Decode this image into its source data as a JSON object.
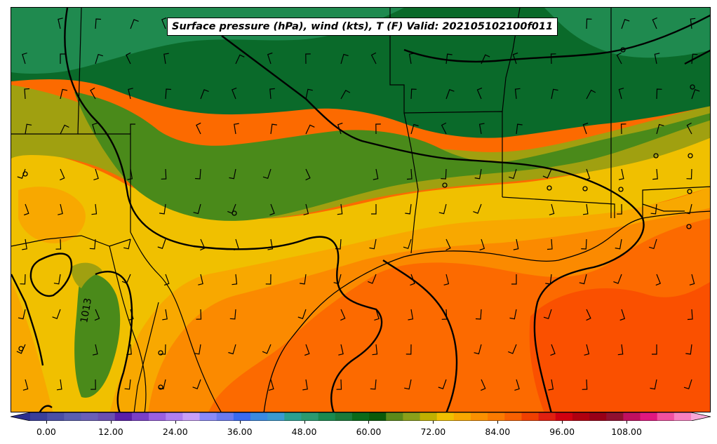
{
  "title": "Surface pressure (hPa), wind (kts), T (F) Valid: 202105102100f011",
  "isobar_label": "1013",
  "colorbar": {
    "min": -6,
    "max": 120,
    "step": 3,
    "extend": "both",
    "ticks": [
      "0.00",
      "12.00",
      "24.00",
      "36.00",
      "48.00",
      "60.00",
      "72.00",
      "84.00",
      "96.00",
      "108.00"
    ],
    "tick_values": [
      0,
      12,
      24,
      36,
      48,
      60,
      72,
      84,
      96,
      108
    ],
    "colors": [
      "#2b2f8f",
      "#3a3f9a",
      "#4a4fa5",
      "#5a5fb0",
      "#6a5fb8",
      "#6a4fb0",
      "#5a1fa8",
      "#7a3fc8",
      "#9a5fe0",
      "#b07ff0",
      "#c89ff8",
      "#8a8af8",
      "#6a7af0",
      "#3a6af0",
      "#3a8ae0",
      "#3a9ad0",
      "#2aa090",
      "#2a9a70",
      "#1a8a50",
      "#1a7a3a",
      "#0a6a1a",
      "#0a5a0a",
      "#5a8a1a",
      "#8aa01a",
      "#c0b000",
      "#f0c000",
      "#f8a800",
      "#fb9000",
      "#fb7a00",
      "#f86000",
      "#f04000",
      "#e02010",
      "#d00010",
      "#b00010",
      "#980018",
      "#901030",
      "#c01060",
      "#e01880",
      "#f050a0",
      "#f880c0",
      "#f8a8d8"
    ]
  },
  "map_colors": {
    "t50": "#1f8a4f",
    "t55": "#0a6a2a",
    "t60": "#4a8a1a",
    "t63": "#a0a010",
    "t66": "#f0c000",
    "t69": "#f8a800",
    "t72": "#fb8a00",
    "t75": "#fc6a00",
    "t78": "#fa5000"
  }
}
